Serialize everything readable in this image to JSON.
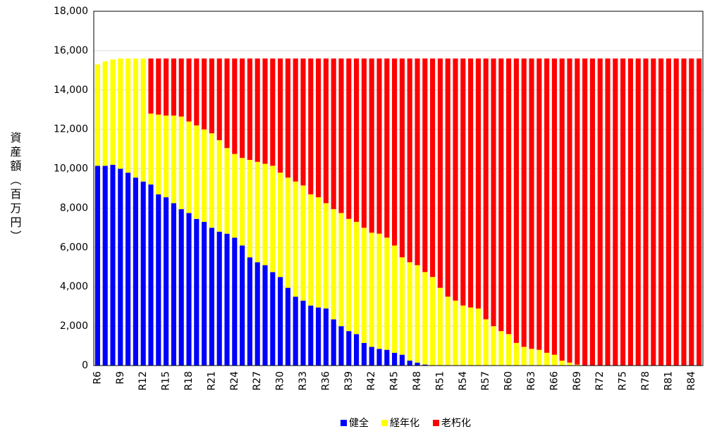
{
  "chart_data": {
    "type": "stacked_bar",
    "y_label": "資産額（百万円）",
    "categories": [
      "R6",
      null,
      null,
      "R9",
      null,
      null,
      "R12",
      null,
      null,
      "R15",
      null,
      null,
      "R18",
      null,
      null,
      "R21",
      null,
      null,
      "R24",
      null,
      null,
      "R27",
      null,
      null,
      "R30",
      null,
      null,
      "R33",
      null,
      null,
      "R36",
      null,
      null,
      "R39",
      null,
      null,
      "R42",
      null,
      null,
      "R45",
      null,
      null,
      "R48",
      null,
      null,
      "R51",
      null,
      null,
      "R54",
      null,
      null,
      "R57",
      null,
      null,
      "R60",
      null,
      null,
      "R63",
      null,
      null,
      "R66",
      null,
      null,
      "R69",
      null,
      null,
      "R72",
      null,
      null,
      "R75",
      null,
      null,
      "R78",
      null,
      null,
      "R81",
      null,
      null,
      "R84",
      null
    ],
    "series": [
      {
        "name": "健全",
        "color": "#0000ff",
        "values": [
          10150,
          10150,
          10200,
          10000,
          9800,
          9550,
          9350,
          9200,
          8700,
          8550,
          8250,
          7950,
          7750,
          7450,
          7300,
          7000,
          6800,
          6700,
          6500,
          6100,
          5500,
          5250,
          5100,
          4750,
          4500,
          3950,
          3500,
          3300,
          3050,
          2950,
          2900,
          2350,
          2000,
          1750,
          1600,
          1150,
          950,
          850,
          800,
          650,
          550,
          250,
          150,
          50,
          0,
          0,
          0,
          0,
          0,
          0,
          0,
          0,
          0,
          0,
          0,
          0,
          0,
          0,
          0,
          0,
          0,
          0,
          0,
          0,
          0,
          0,
          0,
          0,
          0,
          0,
          0,
          0,
          0,
          0,
          0,
          0,
          0,
          0,
          0,
          0
        ]
      },
      {
        "name": "経年化",
        "color": "#ffff00",
        "values": [
          5150,
          5300,
          5350,
          5600,
          5800,
          6050,
          6250,
          3600,
          4050,
          4150,
          4450,
          4700,
          4650,
          4750,
          4700,
          4800,
          4650,
          4350,
          4250,
          4450,
          4950,
          5100,
          5150,
          5400,
          5300,
          5600,
          5850,
          5850,
          5650,
          5600,
          5350,
          5600,
          5750,
          5700,
          5700,
          5850,
          5800,
          5850,
          5700,
          5450,
          4950,
          5000,
          4950,
          4700,
          4500,
          3950,
          3500,
          3300,
          3050,
          2950,
          2900,
          2350,
          2000,
          1750,
          1600,
          1150,
          950,
          850,
          800,
          650,
          550,
          250,
          150,
          50,
          0,
          0,
          0,
          0,
          0,
          0,
          0,
          0,
          0,
          0,
          0,
          0,
          0,
          0,
          0,
          0
        ]
      },
      {
        "name": "老朽化",
        "color": "#ff0000",
        "values": [
          0,
          0,
          0,
          0,
          0,
          0,
          0,
          2800,
          2850,
          2900,
          2900,
          2950,
          3200,
          3400,
          3600,
          3800,
          4150,
          4550,
          4850,
          5050,
          5150,
          5250,
          5350,
          5450,
          5800,
          6050,
          6250,
          6450,
          6900,
          7050,
          7350,
          7650,
          7850,
          8150,
          8300,
          8600,
          8850,
          8900,
          9100,
          9500,
          10100,
          10350,
          10500,
          10850,
          11100,
          11650,
          12100,
          12300,
          12550,
          12650,
          12700,
          13250,
          13600,
          13850,
          14000,
          14450,
          14650,
          14750,
          14800,
          14950,
          15050,
          15350,
          15450,
          15550,
          15600,
          15600,
          15600,
          15600,
          15600,
          15600,
          15600,
          15600,
          15600,
          15600,
          15600,
          15600,
          15600,
          15600,
          15600,
          15600
        ]
      }
    ],
    "ylim": [
      0,
      18000
    ],
    "yticks": [
      0,
      {
        "value": 2000,
        "label": "2,000"
      },
      {
        "value": 4000,
        "label": "4,000"
      },
      {
        "value": 6000,
        "label": "6,000"
      },
      {
        "value": 8000,
        "label": "8,000"
      },
      {
        "value": 10000,
        "label": "10,000"
      },
      {
        "value": 12000,
        "label": "12,000"
      },
      {
        "value": 14000,
        "label": "14,000"
      },
      {
        "value": 16000,
        "label": "16,000"
      },
      {
        "value": 18000,
        "label": "18,000"
      }
    ],
    "grid": true,
    "legend": "bottom"
  }
}
